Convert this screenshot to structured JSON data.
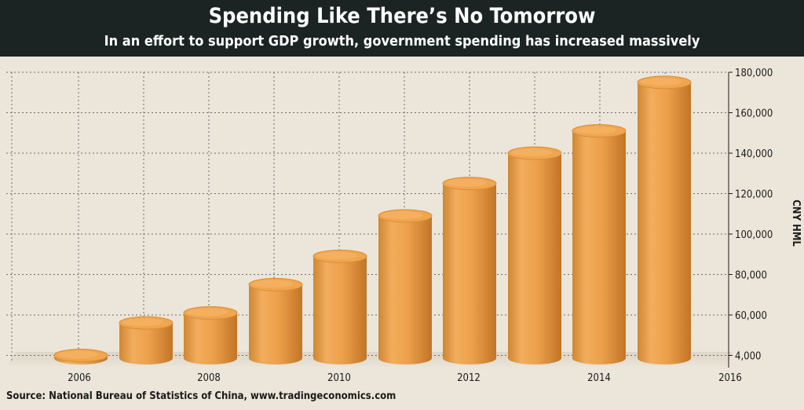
{
  "header": {
    "title": "Spending Like There’s No Tomorrow",
    "subtitle": "In an effort to support GDP growth, government spending has increased massively"
  },
  "source": "Source: National Bureau of Statistics of China, www.tradingeconomics.com",
  "colors": {
    "header_bg": "#1b2422",
    "background": "#ece6da",
    "bar_light": "#f5b866",
    "bar_mid": "#e9993f",
    "bar_dark": "#c57b2c",
    "grid": "#6b6b6b"
  },
  "chart_data": {
    "type": "bar",
    "style": "3d-cylinder",
    "ylabel": "CNY HML",
    "y_tick_labels": [
      "4,000",
      "60,000",
      "80,000",
      "100,000",
      "120,000",
      "140,000",
      "160,000",
      "180,000"
    ],
    "x_tick_labels": [
      "2006",
      "2008",
      "2010",
      "2012",
      "2014",
      "2016"
    ],
    "categories": [
      "2006",
      "2007",
      "2008",
      "2009",
      "2010",
      "2011",
      "2012",
      "2013",
      "2014",
      "2015"
    ],
    "values": [
      4000,
      49000,
      61000,
      75000,
      89000,
      109000,
      125000,
      140000,
      151000,
      175000
    ],
    "grid": true,
    "y_axis_position": "right"
  }
}
